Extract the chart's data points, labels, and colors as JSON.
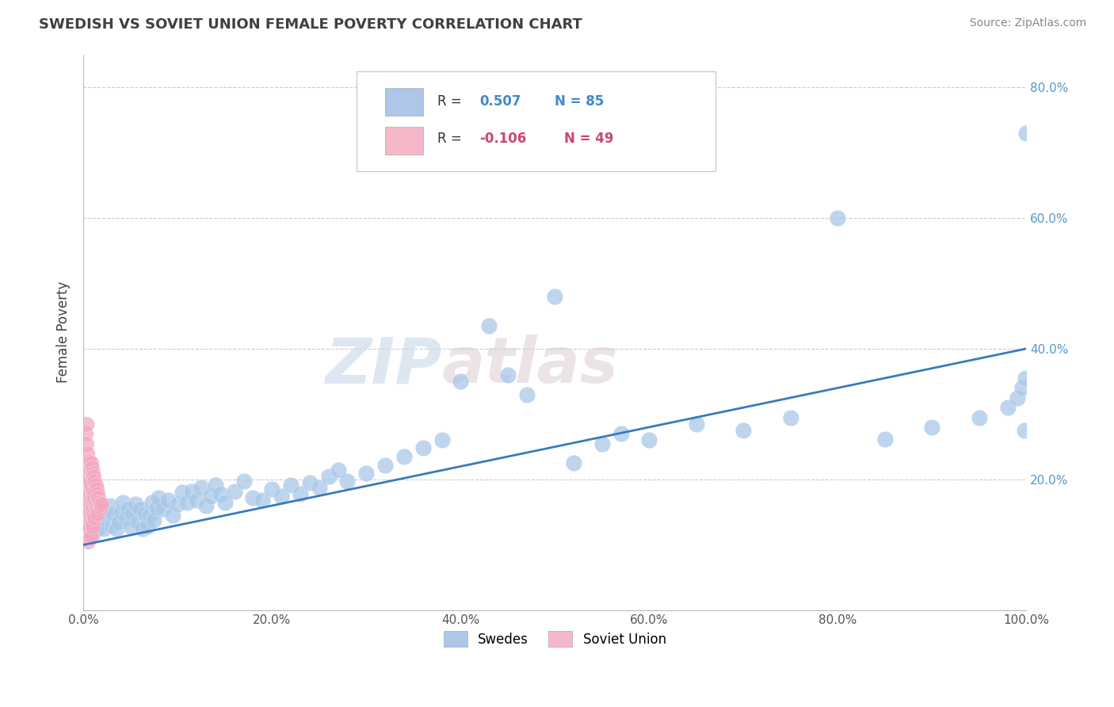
{
  "title": "SWEDISH VS SOVIET UNION FEMALE POVERTY CORRELATION CHART",
  "source": "Source: ZipAtlas.com",
  "ylabel": "Female Poverty",
  "watermark_zip": "ZIP",
  "watermark_atlas": "atlas",
  "x_min": 0.0,
  "x_max": 1.0,
  "y_min": 0.0,
  "y_max": 0.85,
  "x_ticks": [
    0.0,
    0.2,
    0.4,
    0.6,
    0.8,
    1.0
  ],
  "x_tick_labels": [
    "0.0%",
    "20.0%",
    "40.0%",
    "60.0%",
    "80.0%",
    "100.0%"
  ],
  "y_ticks": [
    0.0,
    0.2,
    0.4,
    0.6,
    0.8
  ],
  "y_tick_labels": [
    "",
    "20.0%",
    "40.0%",
    "60.0%",
    "80.0%"
  ],
  "swedes_label": "Swedes",
  "soviet_label": "Soviet Union",
  "blue_color": "#a8c8e8",
  "pink_color": "#f4a8c0",
  "trend_blue": "#3a7abf",
  "trend_pink": "#e8b0c0",
  "background": "#ffffff",
  "grid_color": "#cccccc",
  "title_color": "#404040",
  "axis_blue": "#5599cc",
  "r_label_color": "#333333",
  "r_value_blue": "#4488cc",
  "r_value_pink": "#cc4477",
  "swedes_x": [
    0.005,
    0.008,
    0.01,
    0.012,
    0.015,
    0.018,
    0.02,
    0.022,
    0.025,
    0.028,
    0.03,
    0.032,
    0.035,
    0.038,
    0.04,
    0.042,
    0.045,
    0.048,
    0.05,
    0.052,
    0.055,
    0.058,
    0.06,
    0.063,
    0.065,
    0.068,
    0.07,
    0.073,
    0.075,
    0.078,
    0.08,
    0.085,
    0.09,
    0.095,
    0.1,
    0.105,
    0.11,
    0.115,
    0.12,
    0.125,
    0.13,
    0.135,
    0.14,
    0.145,
    0.15,
    0.16,
    0.17,
    0.18,
    0.19,
    0.2,
    0.21,
    0.22,
    0.23,
    0.24,
    0.25,
    0.26,
    0.27,
    0.28,
    0.3,
    0.32,
    0.34,
    0.36,
    0.38,
    0.4,
    0.43,
    0.45,
    0.47,
    0.5,
    0.52,
    0.55,
    0.57,
    0.6,
    0.65,
    0.7,
    0.75,
    0.8,
    0.85,
    0.9,
    0.95,
    0.98,
    0.99,
    0.995,
    0.998,
    0.999,
    1.0
  ],
  "swedes_y": [
    0.145,
    0.13,
    0.115,
    0.15,
    0.125,
    0.14,
    0.155,
    0.125,
    0.145,
    0.16,
    0.13,
    0.148,
    0.125,
    0.135,
    0.15,
    0.165,
    0.14,
    0.155,
    0.128,
    0.148,
    0.162,
    0.135,
    0.155,
    0.125,
    0.148,
    0.128,
    0.145,
    0.165,
    0.138,
    0.158,
    0.172,
    0.155,
    0.168,
    0.145,
    0.162,
    0.18,
    0.165,
    0.182,
    0.168,
    0.188,
    0.16,
    0.175,
    0.192,
    0.178,
    0.165,
    0.182,
    0.198,
    0.172,
    0.168,
    0.185,
    0.175,
    0.192,
    0.178,
    0.195,
    0.188,
    0.205,
    0.215,
    0.198,
    0.21,
    0.222,
    0.235,
    0.248,
    0.26,
    0.35,
    0.435,
    0.36,
    0.33,
    0.48,
    0.225,
    0.255,
    0.27,
    0.26,
    0.285,
    0.275,
    0.295,
    0.6,
    0.262,
    0.28,
    0.295,
    0.31,
    0.325,
    0.34,
    0.275,
    0.355,
    0.73
  ],
  "soviet_x": [
    0.002,
    0.003,
    0.003,
    0.004,
    0.004,
    0.004,
    0.005,
    0.005,
    0.005,
    0.005,
    0.006,
    0.006,
    0.006,
    0.006,
    0.006,
    0.007,
    0.007,
    0.007,
    0.007,
    0.007,
    0.008,
    0.008,
    0.008,
    0.008,
    0.008,
    0.009,
    0.009,
    0.009,
    0.009,
    0.01,
    0.01,
    0.01,
    0.01,
    0.011,
    0.011,
    0.011,
    0.012,
    0.012,
    0.012,
    0.013,
    0.013,
    0.014,
    0.014,
    0.015,
    0.015,
    0.016,
    0.017,
    0.018,
    0.019
  ],
  "soviet_y": [
    0.27,
    0.285,
    0.255,
    0.24,
    0.21,
    0.185,
    0.165,
    0.148,
    0.128,
    0.105,
    0.228,
    0.198,
    0.175,
    0.152,
    0.128,
    0.215,
    0.188,
    0.162,
    0.138,
    0.112,
    0.225,
    0.195,
    0.168,
    0.142,
    0.115,
    0.218,
    0.188,
    0.16,
    0.135,
    0.21,
    0.182,
    0.155,
    0.128,
    0.205,
    0.175,
    0.148,
    0.198,
    0.168,
    0.142,
    0.192,
    0.162,
    0.185,
    0.155,
    0.178,
    0.148,
    0.172,
    0.165,
    0.158,
    0.162
  ]
}
